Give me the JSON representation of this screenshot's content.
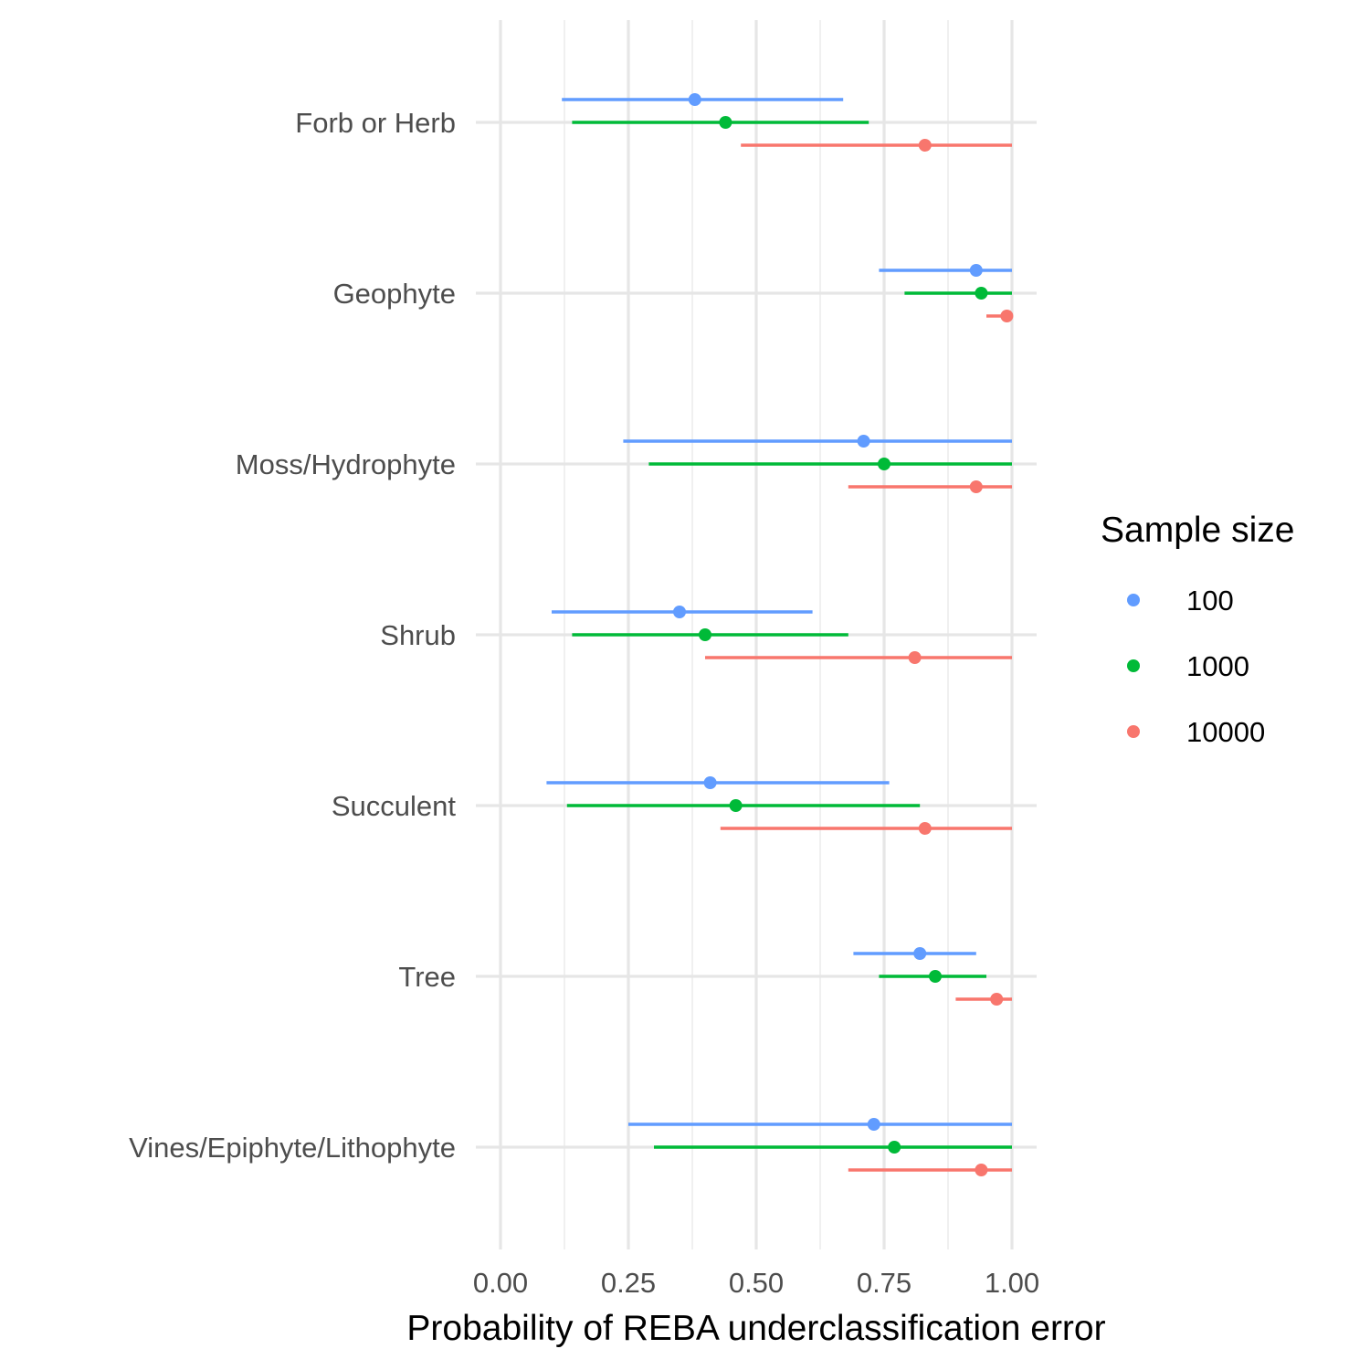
{
  "chart_data": {
    "type": "pointrange",
    "orientation": "horizontal",
    "xlabel": "Probability of REBA underclassification error",
    "ylabel": "",
    "xlim": [
      0,
      1
    ],
    "x_ticks": [
      "0.00",
      "0.25",
      "0.50",
      "0.75",
      "1.00"
    ],
    "categories": [
      "Forb or Herb",
      "Geophyte",
      "Moss/Hydrophyte",
      "Shrub",
      "Succulent",
      "Tree",
      "Vines/Epiphyte/Lithophyte"
    ],
    "legend": {
      "title": "Sample size",
      "position": "right"
    },
    "grid": true,
    "series": [
      {
        "name": "100",
        "color": "#619CFF",
        "estimate": [
          0.38,
          0.93,
          0.71,
          0.35,
          0.41,
          0.82,
          0.73
        ],
        "lower": [
          0.12,
          0.74,
          0.24,
          0.1,
          0.09,
          0.69,
          0.25
        ],
        "upper": [
          0.67,
          1.0,
          1.0,
          0.61,
          0.76,
          0.93,
          1.0
        ]
      },
      {
        "name": "1000",
        "color": "#00BA38",
        "estimate": [
          0.44,
          0.94,
          0.75,
          0.4,
          0.46,
          0.85,
          0.77
        ],
        "lower": [
          0.14,
          0.79,
          0.29,
          0.14,
          0.13,
          0.74,
          0.3
        ],
        "upper": [
          0.72,
          1.0,
          1.0,
          0.68,
          0.82,
          0.95,
          1.0
        ]
      },
      {
        "name": "10000",
        "color": "#F8766D",
        "estimate": [
          0.83,
          0.99,
          0.93,
          0.81,
          0.83,
          0.97,
          0.94
        ],
        "lower": [
          0.47,
          0.95,
          0.68,
          0.4,
          0.43,
          0.89,
          0.68
        ],
        "upper": [
          1.0,
          1.0,
          1.0,
          1.0,
          1.0,
          1.0,
          1.0
        ]
      }
    ]
  }
}
